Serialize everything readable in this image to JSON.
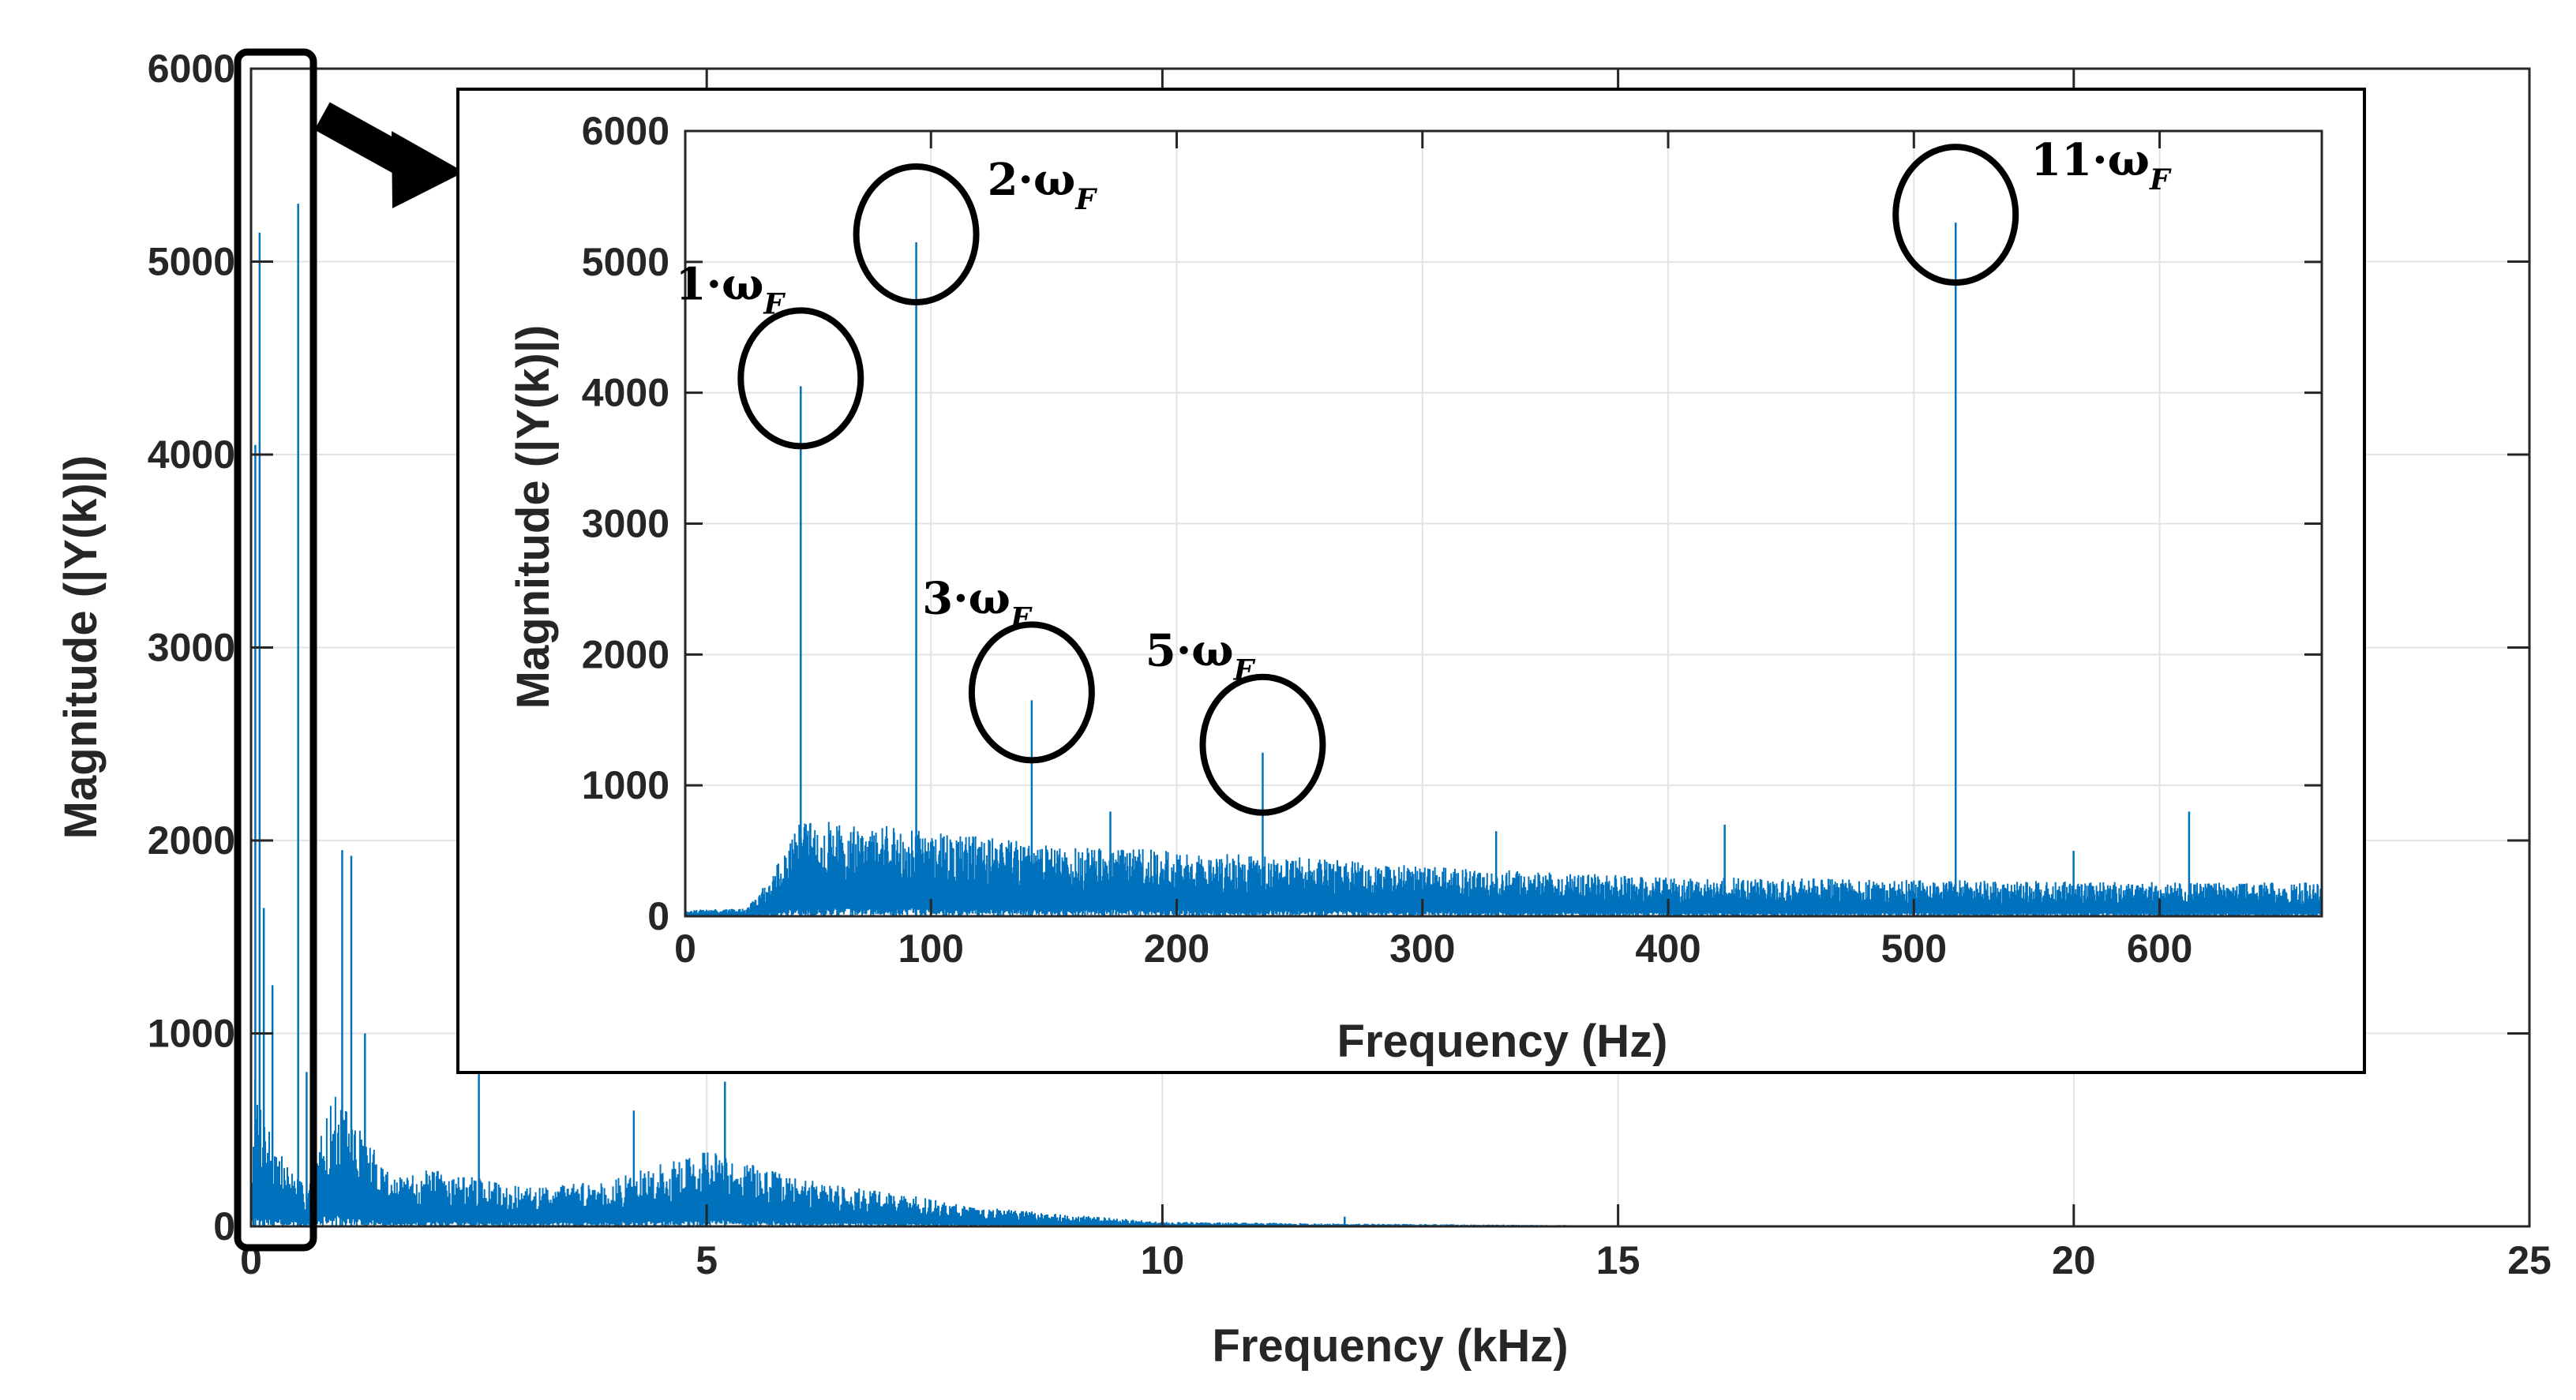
{
  "chart_data": [
    {
      "id": "main",
      "type": "line",
      "title": "",
      "xlabel": "Frequency (kHz)",
      "ylabel": "Magnitude (|Y(k)|)",
      "xlim": [
        0,
        25
      ],
      "ylim": [
        0,
        6000
      ],
      "xticks": [
        0,
        5,
        10,
        15,
        20,
        25
      ],
      "yticks": [
        0,
        1000,
        2000,
        3000,
        4000,
        5000,
        6000
      ],
      "grid": true,
      "series_color": "#0072BD",
      "peaks": [
        {
          "x": 0.047,
          "y": 4050
        },
        {
          "x": 0.094,
          "y": 5150
        },
        {
          "x": 0.14,
          "y": 1650
        },
        {
          "x": 0.235,
          "y": 1250
        },
        {
          "x": 0.517,
          "y": 5300
        },
        {
          "x": 0.61,
          "y": 800
        },
        {
          "x": 1.0,
          "y": 1950
        },
        {
          "x": 1.1,
          "y": 1920
        },
        {
          "x": 1.25,
          "y": 1000
        },
        {
          "x": 2.5,
          "y": 850
        },
        {
          "x": 4.2,
          "y": 600
        },
        {
          "x": 5.2,
          "y": 750
        },
        {
          "x": 10.0,
          "y": 30
        },
        {
          "x": 12.0,
          "y": 50
        }
      ],
      "envelope": [
        {
          "x": 0.0,
          "y": 100
        },
        {
          "x": 0.03,
          "y": 800
        },
        {
          "x": 0.15,
          "y": 600
        },
        {
          "x": 0.3,
          "y": 400
        },
        {
          "x": 0.6,
          "y": 200
        },
        {
          "x": 0.9,
          "y": 700
        },
        {
          "x": 1.2,
          "y": 500
        },
        {
          "x": 1.6,
          "y": 250
        },
        {
          "x": 2.0,
          "y": 300
        },
        {
          "x": 3.0,
          "y": 200
        },
        {
          "x": 4.0,
          "y": 250
        },
        {
          "x": 5.0,
          "y": 400
        },
        {
          "x": 6.0,
          "y": 250
        },
        {
          "x": 7.0,
          "y": 180
        },
        {
          "x": 8.0,
          "y": 100
        },
        {
          "x": 9.0,
          "y": 60
        },
        {
          "x": 10.0,
          "y": 25
        },
        {
          "x": 12.0,
          "y": 15
        },
        {
          "x": 15.0,
          "y": 5
        },
        {
          "x": 20.0,
          "y": 5
        },
        {
          "x": 22.5,
          "y": 3
        }
      ]
    },
    {
      "id": "inset",
      "type": "line",
      "title": "",
      "xlabel": "Frequency (Hz)",
      "ylabel": "Magnitude (|Y(k)|)",
      "xlim": [
        0,
        666
      ],
      "ylim": [
        0,
        6000
      ],
      "xticks": [
        0,
        100,
        200,
        300,
        400,
        500,
        600
      ],
      "yticks": [
        0,
        1000,
        2000,
        3000,
        4000,
        5000,
        6000
      ],
      "grid": true,
      "series_color": "#0072BD",
      "peaks": [
        {
          "x": 47,
          "y": 4050
        },
        {
          "x": 94,
          "y": 5150
        },
        {
          "x": 141,
          "y": 1650
        },
        {
          "x": 235,
          "y": 1250
        },
        {
          "x": 517,
          "y": 5300
        },
        {
          "x": 612,
          "y": 800
        },
        {
          "x": 423,
          "y": 700
        },
        {
          "x": 330,
          "y": 650
        },
        {
          "x": 173,
          "y": 800
        },
        {
          "x": 565,
          "y": 500
        }
      ],
      "envelope": [
        {
          "x": 0,
          "y": 50
        },
        {
          "x": 25,
          "y": 60
        },
        {
          "x": 35,
          "y": 300
        },
        {
          "x": 45,
          "y": 700
        },
        {
          "x": 60,
          "y": 750
        },
        {
          "x": 100,
          "y": 650
        },
        {
          "x": 150,
          "y": 550
        },
        {
          "x": 200,
          "y": 500
        },
        {
          "x": 250,
          "y": 450
        },
        {
          "x": 300,
          "y": 380
        },
        {
          "x": 400,
          "y": 300
        },
        {
          "x": 500,
          "y": 280
        },
        {
          "x": 600,
          "y": 260
        },
        {
          "x": 666,
          "y": 260
        }
      ],
      "annotations": [
        {
          "base": "1·ω",
          "sub": "F",
          "x": 47,
          "y": 4050
        },
        {
          "base": "2·ω",
          "sub": "F",
          "x": 94,
          "y": 5150
        },
        {
          "base": "3·ω",
          "sub": "F",
          "x": 141,
          "y": 1650
        },
        {
          "base": "5·ω",
          "sub": "F",
          "x": 235,
          "y": 1250
        },
        {
          "base": "11·ω",
          "sub": "F",
          "x": 517,
          "y": 5300
        }
      ]
    }
  ]
}
